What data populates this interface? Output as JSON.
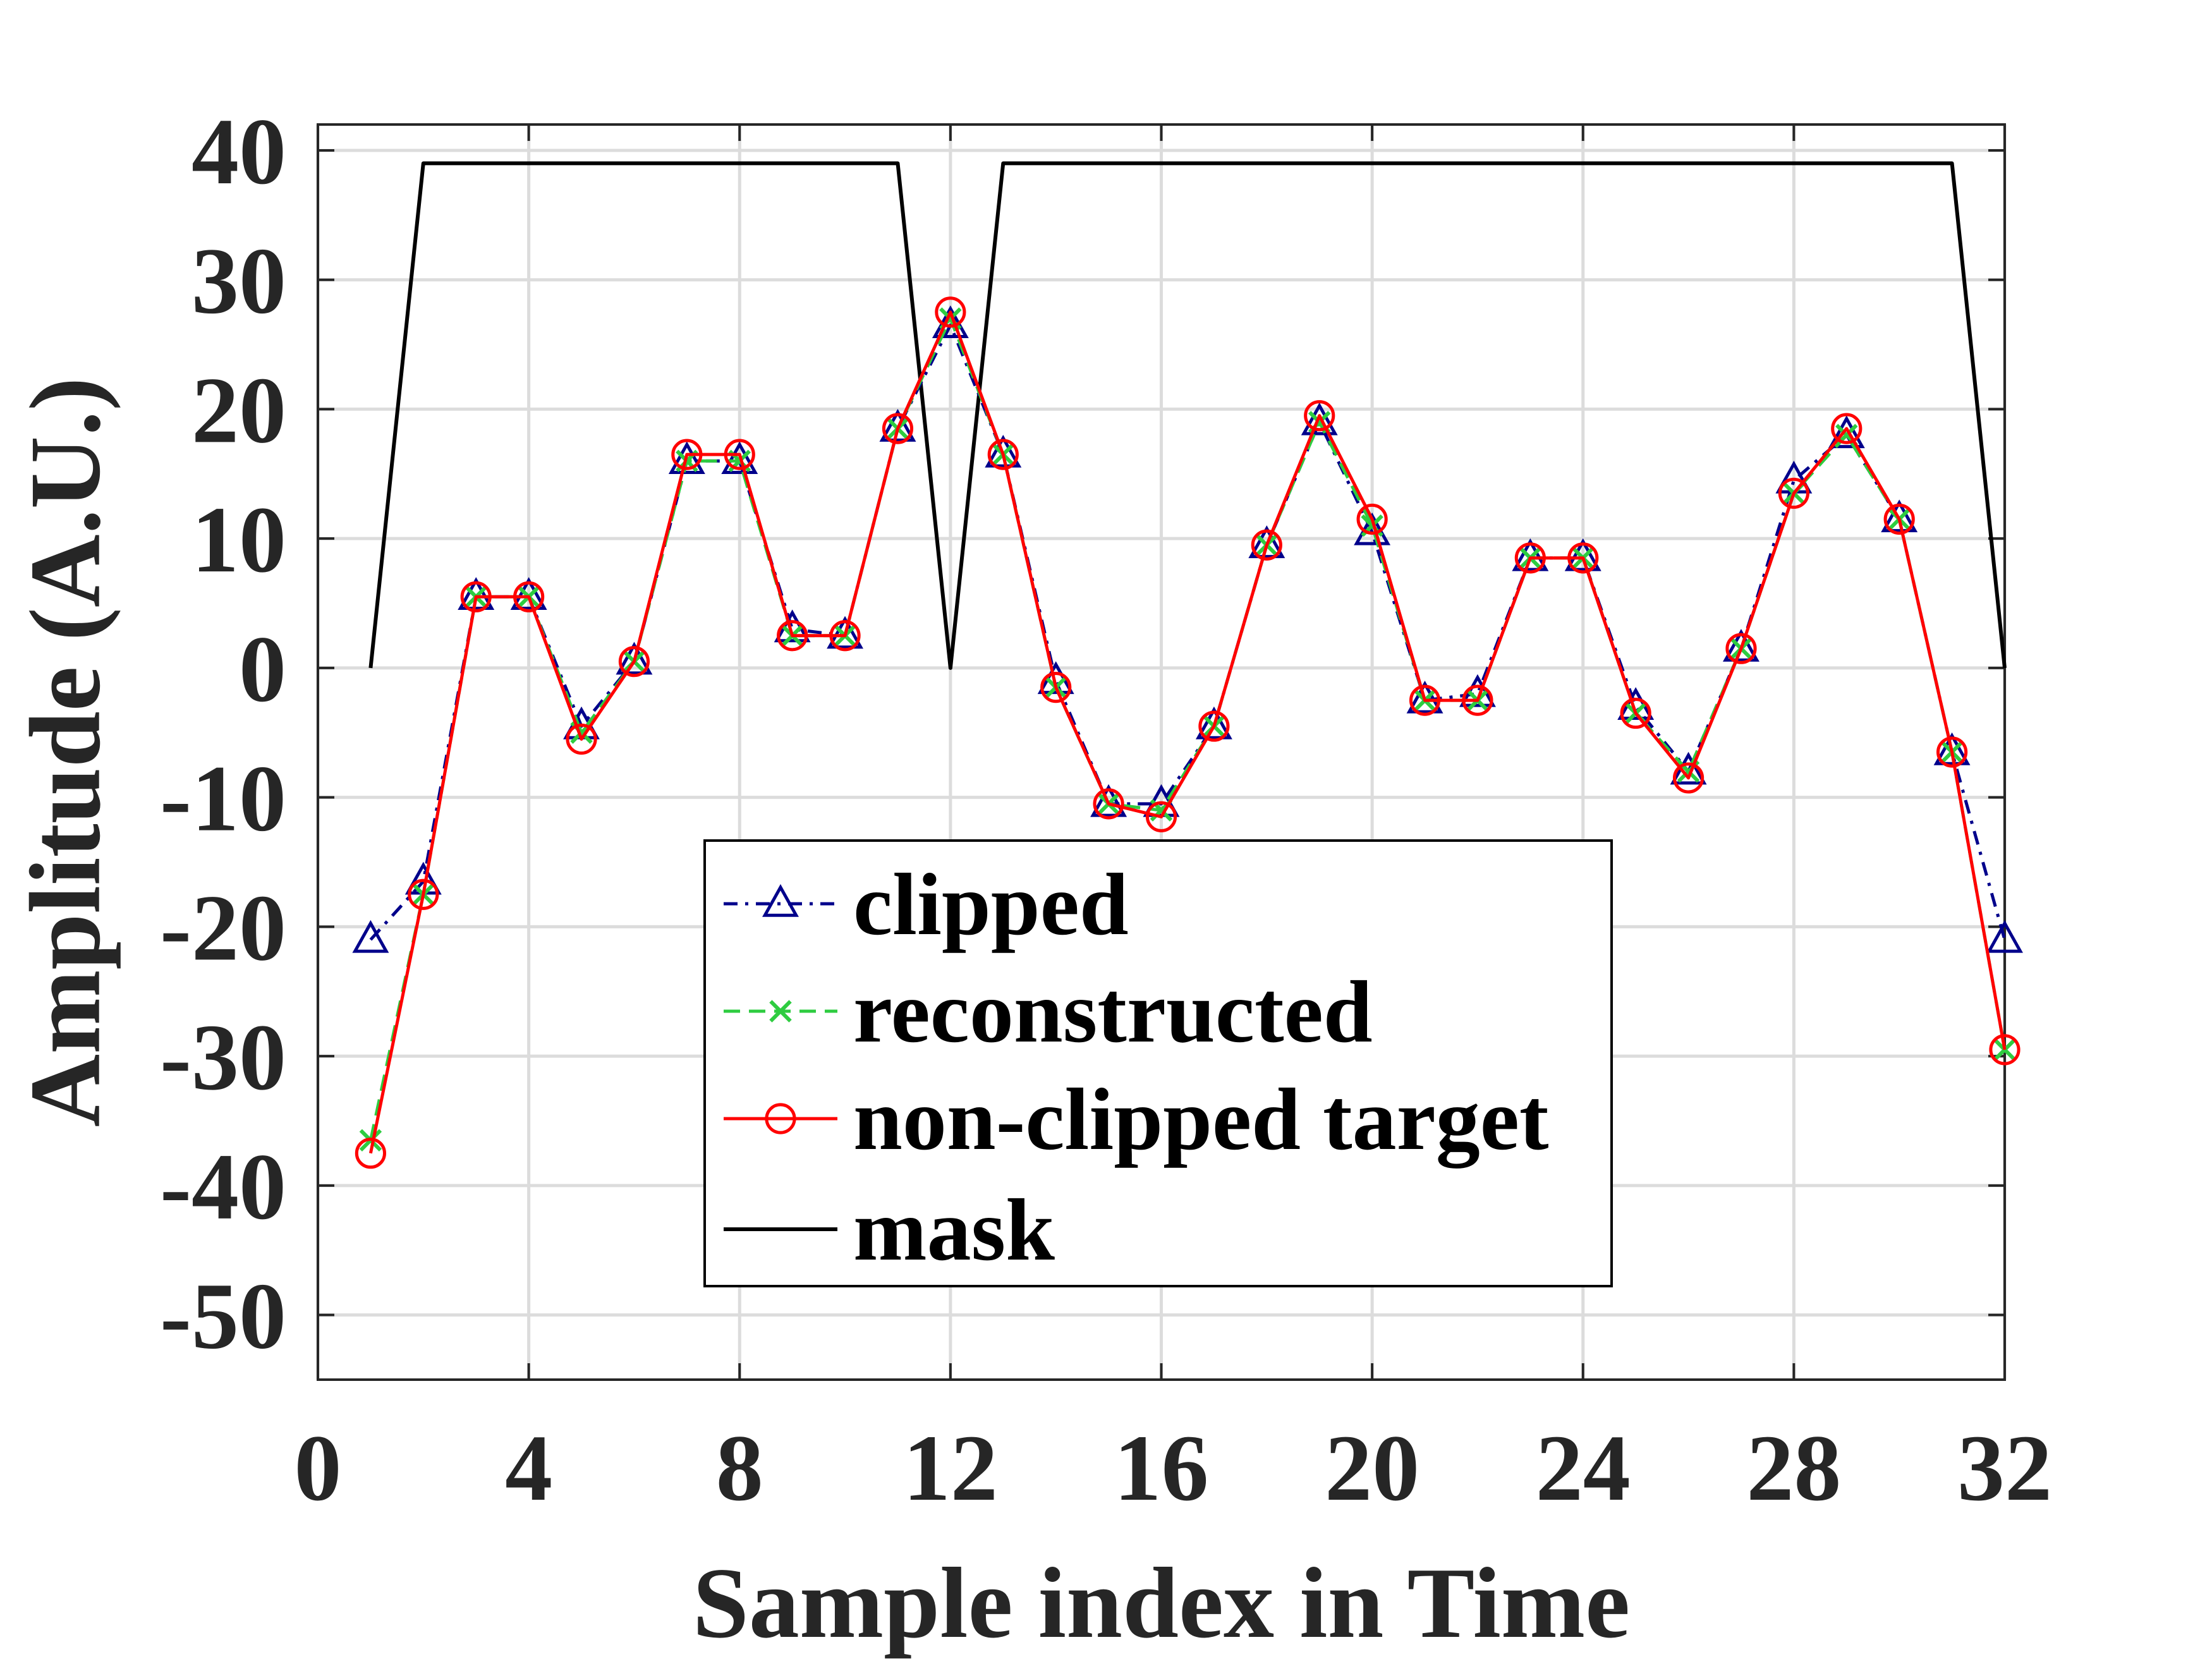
{
  "chart_data": {
    "type": "line",
    "title": "",
    "xlabel": "Sample index in Time",
    "ylabel": "Amplitude (A.U.)",
    "xlim": [
      0,
      32
    ],
    "ylim": [
      -55,
      42
    ],
    "xticks": [
      0,
      4,
      8,
      12,
      16,
      20,
      24,
      28,
      32
    ],
    "yticks": [
      40,
      30,
      20,
      10,
      0,
      -10,
      -20,
      -30,
      -40,
      -50
    ],
    "xtick_labels": [
      "0",
      "4",
      "8",
      "12",
      "16",
      "20",
      "24",
      "28",
      "32"
    ],
    "ytick_labels": [
      "40",
      "30",
      "20",
      "10",
      "0",
      "-10",
      "-20",
      "-30",
      "-40",
      "-50"
    ],
    "grid": true,
    "legend_position": "lower-center",
    "series": [
      {
        "name": "clipped",
        "color": "#00008B",
        "line_style": "dash-dot",
        "marker": "triangle",
        "x": [
          1,
          2,
          3,
          4,
          5,
          6,
          7,
          8,
          9,
          10,
          11,
          12,
          13,
          14,
          15,
          16,
          17,
          18,
          19,
          20,
          21,
          22,
          23,
          24,
          25,
          26,
          27,
          28,
          29,
          30,
          31,
          32
        ],
        "y": [
          -21,
          -16.5,
          5.5,
          5.5,
          -4.5,
          0.5,
          16,
          16,
          3,
          2.5,
          18.5,
          26.5,
          16.5,
          -1,
          -10.5,
          -10.5,
          -4.5,
          9.5,
          19,
          10.5,
          -2.5,
          -2,
          8.5,
          8.5,
          -3,
          -8,
          1.5,
          14.5,
          18,
          11.5,
          -6.5,
          -21
        ]
      },
      {
        "name": "reconstructed",
        "color": "#2ecc40",
        "line_style": "dashed",
        "marker": "x",
        "x": [
          1,
          2,
          3,
          4,
          5,
          6,
          7,
          8,
          9,
          10,
          11,
          12,
          13,
          14,
          15,
          16,
          17,
          18,
          19,
          20,
          21,
          22,
          23,
          24,
          25,
          26,
          27,
          28,
          29,
          30,
          31,
          32
        ],
        "y": [
          -36.5,
          -17.5,
          5.5,
          5.5,
          -5,
          0.5,
          16,
          16,
          2.5,
          2.5,
          18.5,
          27,
          16.5,
          -1.5,
          -10.5,
          -11,
          -4.5,
          9.5,
          19,
          11,
          -2.5,
          -2.5,
          8.5,
          8.5,
          -3.5,
          -8,
          1.5,
          13.5,
          18,
          11.5,
          -6.5,
          -29.5
        ]
      },
      {
        "name": "non-clipped target",
        "color": "#ff0000",
        "line_style": "solid",
        "marker": "circle",
        "x": [
          1,
          2,
          3,
          4,
          5,
          6,
          7,
          8,
          9,
          10,
          11,
          12,
          13,
          14,
          15,
          16,
          17,
          18,
          19,
          20,
          21,
          22,
          23,
          24,
          25,
          26,
          27,
          28,
          29,
          30,
          31,
          32
        ],
        "y": [
          -37.5,
          -17.5,
          5.5,
          5.5,
          -5.5,
          0.5,
          16.5,
          16.5,
          2.5,
          2.5,
          18.5,
          27.5,
          16.5,
          -1.5,
          -10.5,
          -11.5,
          -4.5,
          9.5,
          19.5,
          11.5,
          -2.5,
          -2.5,
          8.5,
          8.5,
          -3.5,
          -8.5,
          1.5,
          13.5,
          18.5,
          11.5,
          -6.5,
          -29.5
        ]
      },
      {
        "name": "mask",
        "color": "#000000",
        "line_style": "solid",
        "marker": "none",
        "x": [
          1,
          2,
          11,
          12,
          13,
          31,
          32
        ],
        "y": [
          0,
          39,
          39,
          0,
          39,
          39,
          0
        ]
      }
    ]
  }
}
